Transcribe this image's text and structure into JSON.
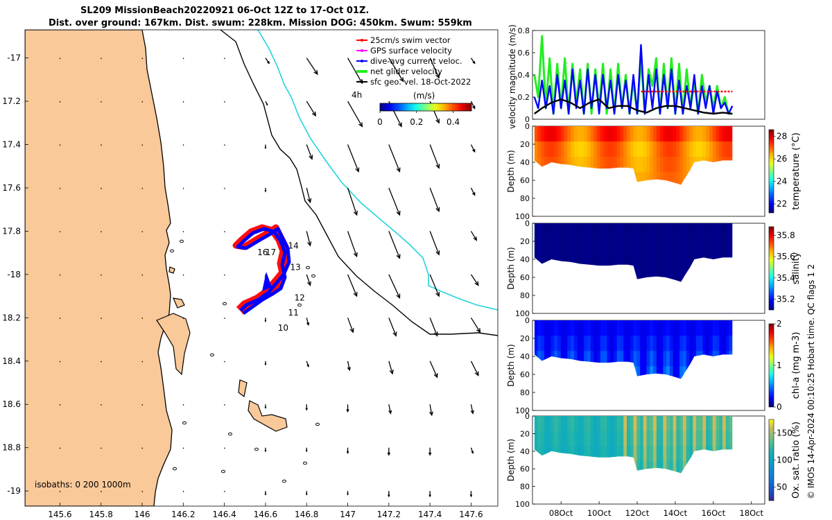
{
  "title": {
    "line1": "SL209 MissionBeach20220921 06-Oct 12Z to 17-Oct 01Z.",
    "line2": "Dist. over ground: 167km. Dist. swum: 228km. Mission DOG: 450km. Swum: 559km"
  },
  "credit": "© IMOS 14-Apr-2024 00:10:25 Hobart time. QC flags 1  2",
  "colors": {
    "land": "#f9c99a",
    "coast": "#000000",
    "isobath200": "#000000",
    "isobath1000": "#22d3dc",
    "swim": "#ff0000",
    "gps": "#ff00ff",
    "current": "#0000ff",
    "net": "#22ee22",
    "geo": "#000000"
  },
  "chart_data": [
    {
      "type": "map",
      "id": "track-map",
      "xlabel_ticks": [
        "145.6",
        "145.8",
        "146",
        "146.2",
        "146.4",
        "146.6",
        "146.8",
        "147",
        "147.2",
        "147.4",
        "147.6"
      ],
      "x_values": [
        145.6,
        145.8,
        146.0,
        146.2,
        146.4,
        146.6,
        146.8,
        147.0,
        147.2,
        147.4,
        147.6
      ],
      "xlim": [
        145.43,
        147.73
      ],
      "ylabel_ticks": [
        "-17",
        "17.2",
        "17.4",
        "17.6",
        "17.8",
        "-18",
        "18.2",
        "18.4",
        "18.6",
        "18.8",
        "-19"
      ],
      "y_values": [
        -17.0,
        -17.2,
        -17.4,
        -17.6,
        -17.8,
        -18.0,
        -18.2,
        -18.4,
        -18.6,
        -18.8,
        -19.0
      ],
      "ylim": [
        -19.07,
        -16.87
      ],
      "legend": [
        {
          "label": "25cm/s swim vector",
          "color_key": "swim"
        },
        {
          "label": "GPS surface velocity",
          "color_key": "gps"
        },
        {
          "label": "dive-avg current veloc.",
          "color_key": "current"
        },
        {
          "label": "net glider velocity",
          "color_key": "net"
        },
        {
          "label": "sfc geo. vel. 18-Oct-2022",
          "color_key": "geo"
        }
      ],
      "legend_extra": "4h",
      "colorbar": {
        "label": "(m/s)",
        "ticks": [
          "0",
          "0.2",
          "0.4"
        ],
        "tick_values": [
          0,
          0.2,
          0.4
        ],
        "range": [
          0,
          0.5
        ]
      },
      "isobath_note": "isobaths: 0   200  1000m",
      "day_labels": [
        {
          "text": "10",
          "lon": 146.66,
          "lat": -18.26
        },
        {
          "text": "11",
          "lon": 146.71,
          "lat": -18.19
        },
        {
          "text": "12",
          "lon": 146.74,
          "lat": -18.12
        },
        {
          "text": "13",
          "lon": 146.72,
          "lat": -17.98
        },
        {
          "text": "14",
          "lon": 146.71,
          "lat": -17.88
        },
        {
          "text": "16",
          "lon": 146.56,
          "lat": -17.91
        },
        {
          "text": "17",
          "lon": 146.6,
          "lat": -17.91
        }
      ],
      "vector_field": {
        "lons": [
          145.6,
          145.8,
          146.0,
          146.2,
          146.4,
          146.6,
          146.8,
          147.0,
          147.2,
          147.4,
          147.6
        ],
        "lats": [
          -17.0,
          -17.2,
          -17.4,
          -17.6,
          -17.8,
          -18.0,
          -18.2,
          -18.4,
          -18.6,
          -18.8,
          -19.0
        ],
        "u": [
          [
            0,
            0,
            0,
            0,
            0,
            0.02,
            0.06,
            0.08,
            0.08,
            0.05,
            0.02
          ],
          [
            0,
            0,
            0,
            0,
            0,
            0.01,
            0.05,
            0.08,
            0.07,
            0.05,
            0.02
          ],
          [
            0,
            0,
            0,
            0,
            0,
            0,
            0.03,
            0.06,
            0.06,
            0.05,
            0.02
          ],
          [
            0,
            0,
            0,
            0,
            0,
            0,
            0.02,
            0.05,
            0.06,
            0.05,
            0.02
          ],
          [
            0,
            0,
            0,
            0,
            0,
            0,
            0.02,
            0.05,
            0.06,
            0.05,
            0.03
          ],
          [
            0,
            0,
            0,
            0,
            0,
            0,
            0.02,
            0.05,
            0.06,
            0.05,
            0.04
          ],
          [
            0,
            0,
            0,
            0,
            0,
            0,
            0.01,
            0.03,
            0.04,
            0.04,
            0.05
          ],
          [
            0,
            0,
            0,
            0,
            0,
            0,
            0.01,
            0.01,
            0.02,
            0.04,
            0.04
          ],
          [
            0,
            0,
            0,
            0,
            0,
            0,
            0.0,
            0.0,
            0.01,
            0.01,
            0.01
          ],
          [
            0,
            0,
            0,
            0,
            0,
            0,
            0.0,
            0.0,
            0.0,
            0.0,
            0.01
          ],
          [
            0,
            0,
            0,
            0,
            0,
            0,
            0.0,
            0.0,
            0.0,
            0.0,
            0.0
          ]
        ],
        "v": [
          [
            0,
            0,
            0,
            0,
            0,
            -0.03,
            -0.09,
            -0.14,
            -0.13,
            -0.11,
            -0.03
          ],
          [
            0,
            0,
            0,
            0,
            0,
            -0.02,
            -0.08,
            -0.14,
            -0.14,
            -0.12,
            -0.04
          ],
          [
            0,
            0,
            0,
            0,
            0,
            -0.02,
            -0.08,
            -0.15,
            -0.15,
            -0.13,
            -0.04
          ],
          [
            0,
            0,
            0,
            0,
            0,
            -0.02,
            -0.08,
            -0.15,
            -0.15,
            -0.13,
            -0.04
          ],
          [
            0,
            0,
            0,
            0,
            0,
            -0.02,
            -0.08,
            -0.14,
            -0.15,
            -0.13,
            -0.05
          ],
          [
            0,
            0,
            0,
            0,
            0,
            -0.02,
            -0.06,
            -0.12,
            -0.13,
            -0.12,
            -0.06
          ],
          [
            0,
            0,
            0,
            0,
            0,
            -0.02,
            -0.04,
            -0.08,
            -0.1,
            -0.1,
            -0.08
          ],
          [
            0,
            0,
            0,
            0,
            0,
            -0.02,
            -0.03,
            -0.05,
            -0.07,
            -0.09,
            -0.08
          ],
          [
            0,
            0,
            0,
            0,
            0,
            -0.02,
            -0.03,
            -0.04,
            -0.05,
            -0.06,
            -0.05
          ],
          [
            0,
            0,
            0,
            0,
            0,
            -0.02,
            -0.02,
            -0.03,
            -0.04,
            -0.04,
            -0.03
          ],
          [
            0,
            0,
            0,
            0,
            0,
            -0.02,
            -0.02,
            -0.02,
            -0.03,
            -0.03,
            -0.03
          ]
        ]
      }
    },
    {
      "type": "line",
      "id": "velocity-panel",
      "ylabel": "velocity magnitude (m/s)",
      "yticks": [
        "0",
        "0.2",
        "0.4",
        "0.6",
        "0.8"
      ],
      "ytick_values": [
        0,
        0.2,
        0.4,
        0.6,
        0.8
      ],
      "ylim": [
        0,
        0.8
      ],
      "xlim_days": [
        6.5,
        18.7
      ],
      "series": [
        {
          "name": "net glider velocity",
          "color_key": "net",
          "x": [
            6.6,
            6.8,
            7.0,
            7.2,
            7.4,
            7.6,
            7.8,
            8.0,
            8.2,
            8.4,
            8.6,
            8.8,
            9.0,
            9.2,
            9.4,
            9.6,
            9.8,
            10.0,
            10.2,
            10.4,
            10.6,
            10.8,
            11.0,
            11.2,
            11.4,
            11.6,
            11.8,
            12.0,
            12.2,
            12.4,
            12.6,
            12.8,
            13.0,
            13.2,
            13.4,
            13.6,
            13.8,
            14.0,
            14.2,
            14.4,
            14.6,
            14.8,
            15.0,
            15.2,
            15.4,
            15.6,
            15.8,
            16.0,
            16.2,
            16.4,
            16.6,
            16.8,
            17.0
          ],
          "y": [
            0.4,
            0.2,
            0.75,
            0.1,
            0.55,
            0.05,
            0.5,
            0.1,
            0.55,
            0.05,
            0.5,
            0.15,
            0.45,
            0.05,
            0.5,
            0.05,
            0.45,
            0.1,
            0.5,
            0.05,
            0.45,
            0.05,
            0.5,
            0.1,
            0.4,
            0.05,
            0.35,
            0.05,
            0.55,
            0.05,
            0.45,
            0.3,
            0.55,
            0.05,
            0.5,
            0.1,
            0.55,
            0.05,
            0.5,
            0.05,
            0.45,
            0.1,
            0.35,
            0.05,
            0.4,
            0.15,
            0.3,
            0.1,
            0.3,
            0.1,
            0.2,
            0.05,
            0.05
          ]
        },
        {
          "name": "dive-avg current veloc.",
          "color_key": "current",
          "x": [
            6.6,
            6.8,
            7.0,
            7.2,
            7.4,
            7.6,
            7.8,
            8.0,
            8.2,
            8.4,
            8.6,
            8.8,
            9.0,
            9.2,
            9.4,
            9.6,
            9.8,
            10.0,
            10.2,
            10.4,
            10.6,
            10.8,
            11.0,
            11.2,
            11.4,
            11.6,
            11.8,
            12.0,
            12.2,
            12.4,
            12.6,
            12.8,
            13.0,
            13.2,
            13.4,
            13.6,
            13.8,
            14.0,
            14.2,
            14.4,
            14.6,
            14.8,
            15.0,
            15.2,
            15.4,
            15.6,
            15.8,
            16.0,
            16.2,
            16.4,
            16.6,
            16.8,
            17.0
          ],
          "y": [
            0.2,
            0.1,
            0.35,
            0.1,
            0.3,
            0.05,
            0.4,
            0.1,
            0.35,
            0.05,
            0.45,
            0.1,
            0.35,
            0.05,
            0.45,
            0.1,
            0.4,
            0.05,
            0.4,
            0.1,
            0.35,
            0.05,
            0.4,
            0.1,
            0.35,
            0.05,
            0.4,
            0.05,
            0.67,
            0.05,
            0.4,
            0.1,
            0.45,
            0.05,
            0.4,
            0.1,
            0.45,
            0.05,
            0.35,
            0.05,
            0.3,
            0.1,
            0.4,
            0.05,
            0.3,
            0.1,
            0.3,
            0.05,
            0.25,
            0.1,
            0.15,
            0.05,
            0.12
          ]
        },
        {
          "name": "25cm/s swim vector",
          "color_key": "swim",
          "x": [
            12.2,
            13.0,
            14.0,
            15.0,
            16.0,
            17.0
          ],
          "y": [
            0.25,
            0.25,
            0.25,
            0.25,
            0.25,
            0.25
          ]
        },
        {
          "name": "sfc geo. vel.",
          "color_key": "geo",
          "x": [
            6.6,
            7.0,
            7.5,
            8.0,
            8.5,
            9.0,
            9.5,
            10.0,
            10.5,
            11.0,
            11.5,
            12.0,
            12.5,
            13.0,
            13.5,
            14.0,
            14.5,
            15.0,
            15.5,
            16.0,
            16.5,
            17.0
          ],
          "y": [
            0.05,
            0.1,
            0.15,
            0.18,
            0.15,
            0.1,
            0.15,
            0.18,
            0.1,
            0.12,
            0.12,
            0.08,
            0.06,
            0.1,
            0.12,
            0.12,
            0.1,
            0.08,
            0.06,
            0.05,
            0.06,
            0.05
          ]
        }
      ]
    },
    {
      "type": "heatmap",
      "id": "temperature-panel",
      "ylabel": "Depth (m)",
      "cbar_label": "temperature (°C)",
      "cbar_ticks": [
        "22",
        "24",
        "26",
        "28"
      ],
      "cbar_values": [
        22,
        24,
        26,
        28
      ],
      "cbar_range": [
        21.2,
        28.6
      ],
      "value_range": [
        26.0,
        28.0
      ],
      "yticks": [
        "0",
        "20",
        "40",
        "60",
        "80",
        "100"
      ],
      "ytick_values": [
        0,
        20,
        40,
        60,
        80,
        100
      ]
    },
    {
      "type": "heatmap",
      "id": "salinity-panel",
      "ylabel": "Depth (m)",
      "cbar_label": "salinity",
      "cbar_ticks": [
        "35.2",
        "35.4",
        "35.6",
        "35.8"
      ],
      "cbar_values": [
        35.2,
        35.4,
        35.6,
        35.8
      ],
      "cbar_range": [
        35.1,
        35.88
      ],
      "value_range": [
        35.1,
        35.12
      ],
      "yticks": [
        "0",
        "20",
        "40",
        "60",
        "80",
        "100"
      ],
      "ytick_values": [
        0,
        20,
        40,
        60,
        80,
        100
      ]
    },
    {
      "type": "heatmap",
      "id": "chla-panel",
      "ylabel": "Depth (m)",
      "cbar_label": "chl-a (mg m-3)",
      "cbar_ticks": [
        "0",
        "1",
        "2"
      ],
      "cbar_values": [
        0,
        1,
        2
      ],
      "cbar_range": [
        0,
        2
      ],
      "value_range": [
        0.1,
        0.6
      ],
      "yticks": [
        "0",
        "20",
        "40",
        "60",
        "80",
        "100"
      ],
      "ytick_values": [
        0,
        20,
        40,
        60,
        80,
        100
      ]
    },
    {
      "type": "heatmap",
      "id": "oxygen-panel",
      "ylabel": "Depth (m)",
      "cbar_label": "Ox. sat. ratio (%)",
      "cbar_ticks": [
        "50",
        "100",
        "150"
      ],
      "cbar_values": [
        50,
        100,
        150
      ],
      "cbar_range": [
        25,
        175
      ],
      "value_range": [
        95,
        165
      ],
      "yticks": [
        "0",
        "20",
        "40",
        "60",
        "80",
        "100"
      ],
      "ytick_values": [
        0,
        20,
        40,
        60,
        80,
        100
      ],
      "xticks": [
        "08Oct",
        "10Oct",
        "12Oct",
        "14Oct",
        "16Oct",
        "18Oct"
      ],
      "xtick_days": [
        8,
        10,
        12,
        14,
        16,
        18
      ]
    }
  ],
  "profile_bottom_depth": {
    "days": [
      6.6,
      7.0,
      7.5,
      8.0,
      8.5,
      9.0,
      9.5,
      10.0,
      10.5,
      11.0,
      11.5,
      11.8,
      12.0,
      12.5,
      13.0,
      13.5,
      14.0,
      14.3,
      14.5,
      14.8,
      15.0,
      15.5,
      16.0,
      16.5,
      17.0
    ],
    "depth_m": [
      38,
      45,
      40,
      42,
      43,
      45,
      46,
      47,
      47,
      46,
      46,
      47,
      62,
      60,
      59,
      60,
      63,
      65,
      58,
      48,
      40,
      38,
      40,
      38,
      38
    ]
  }
}
